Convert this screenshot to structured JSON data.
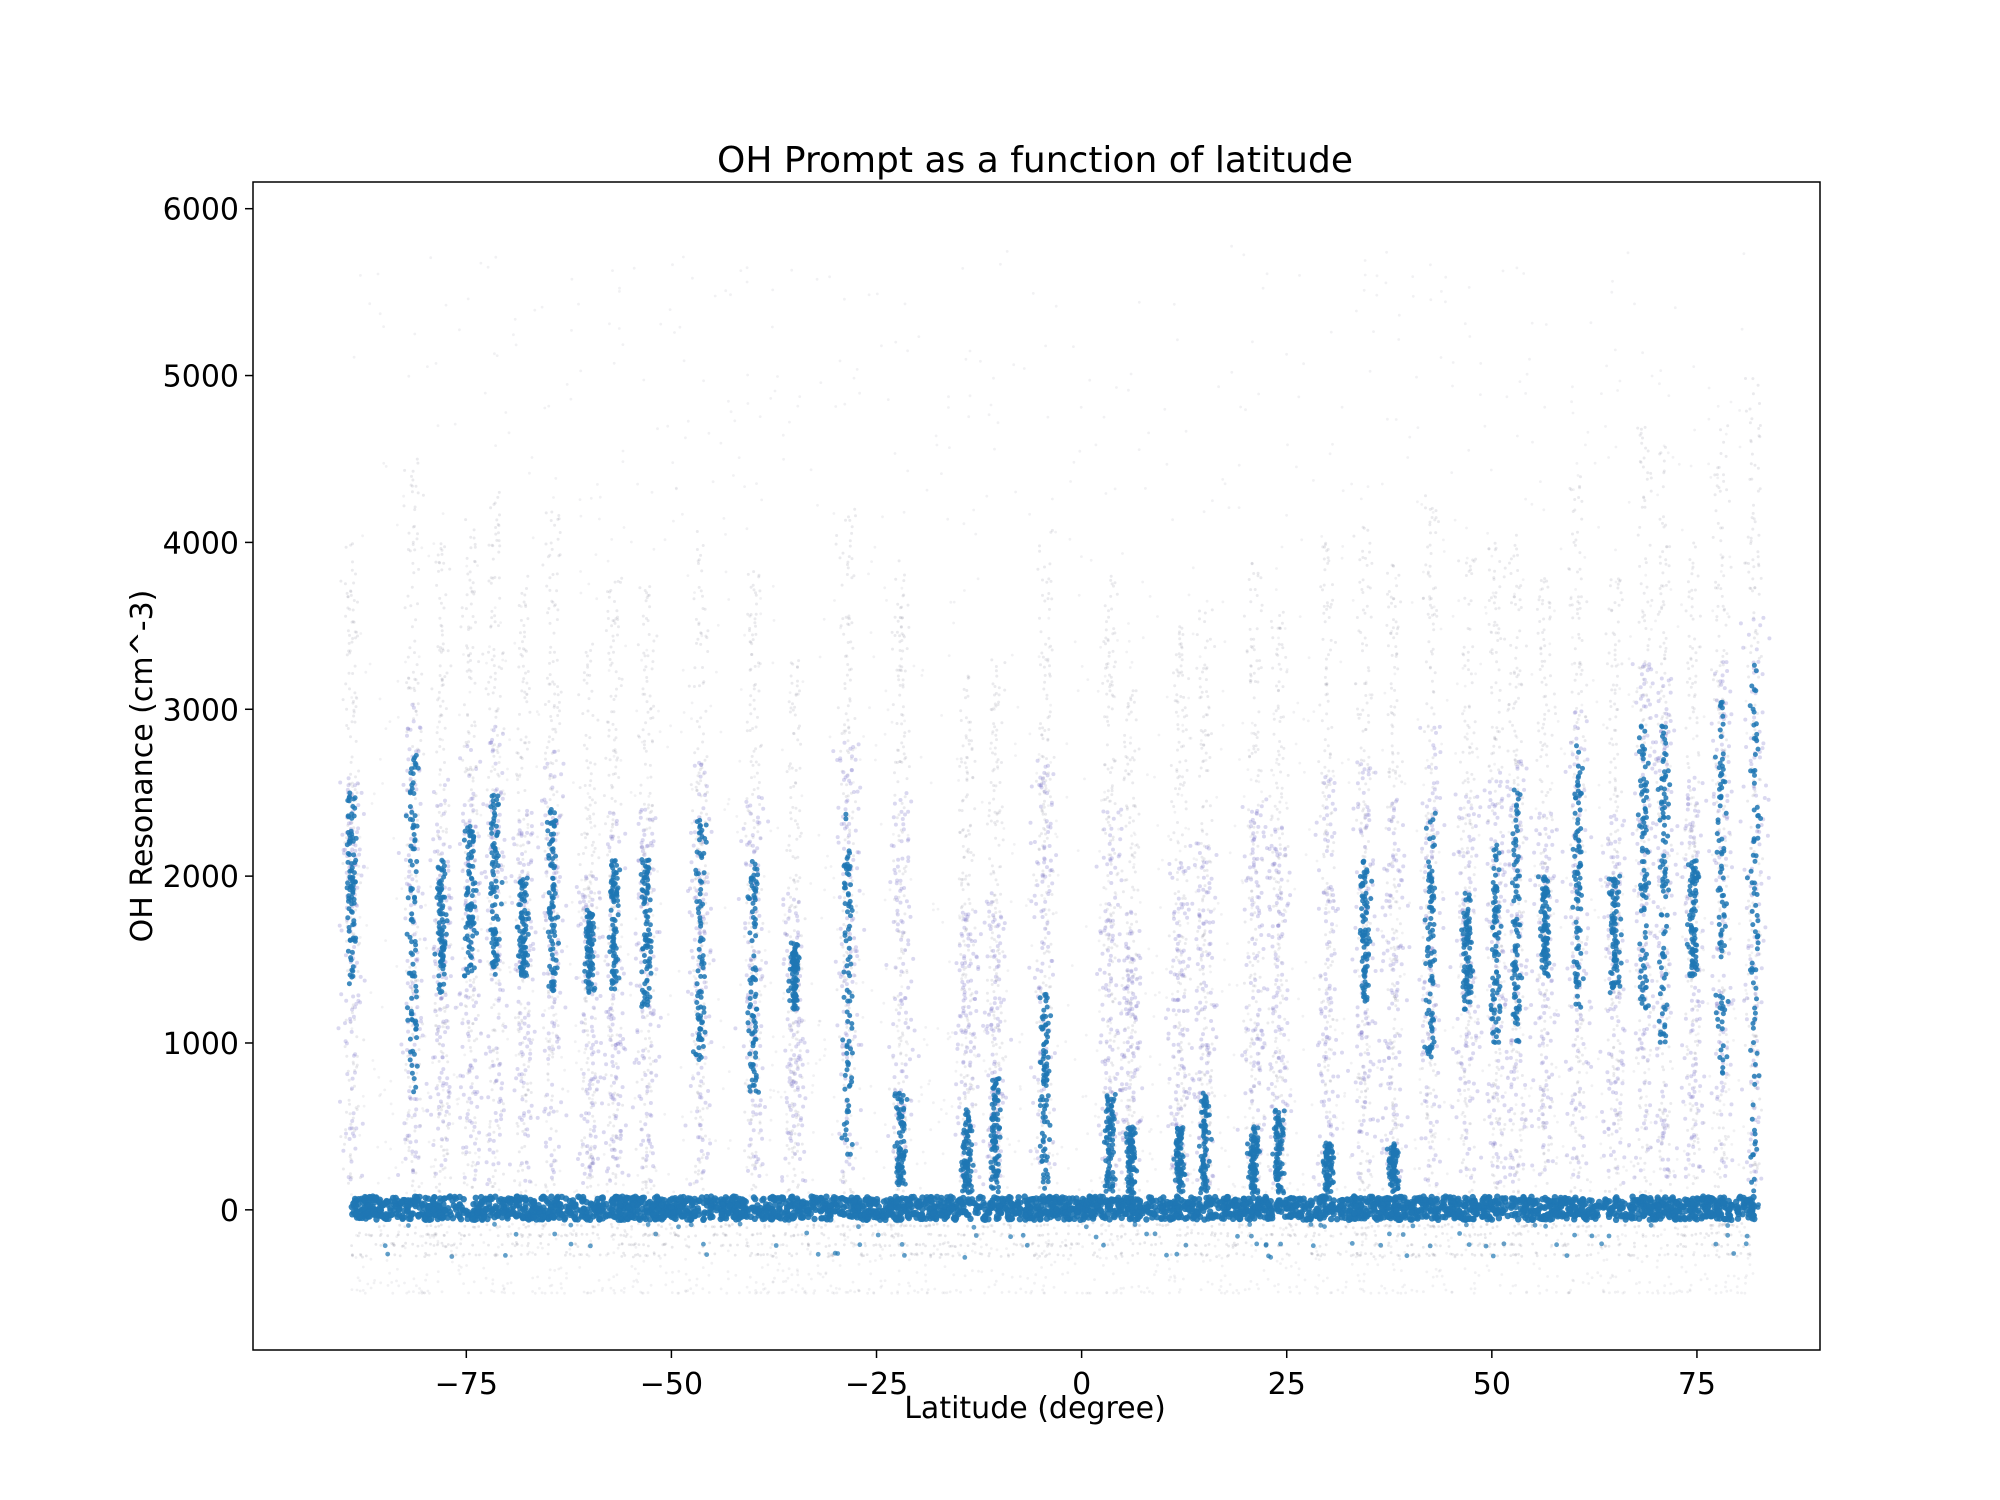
{
  "chart_data": {
    "type": "scatter",
    "title": "OH Prompt as a function of latitude",
    "xlabel": "Latitude (degree)",
    "ylabel": "OH Resonance (cm^-3)",
    "xlim": [
      -101,
      90
    ],
    "ylim": [
      -840,
      6160
    ],
    "xticks": [
      -75,
      -50,
      -25,
      0,
      25,
      50,
      75
    ],
    "xtick_labels": [
      "−75",
      "−50",
      "−25",
      "0",
      "25",
      "50",
      "75"
    ],
    "yticks": [
      0,
      1000,
      2000,
      3000,
      4000,
      5000,
      6000
    ],
    "ytick_labels": [
      "0",
      "1000",
      "2000",
      "3000",
      "4000",
      "5000",
      "6000"
    ],
    "grid": false,
    "legend": "none",
    "colors": {
      "point": "#1f77b4",
      "faint": "#8a8a9a",
      "halo": "#7b72c8"
    },
    "x_range": [
      -89,
      82
    ],
    "baseline": {
      "mean": 0,
      "spread": [
        -60,
        80
      ]
    },
    "negative_bands": [
      -270,
      -210,
      -150,
      -95
    ],
    "tracks": [
      {
        "x": -89.0,
        "peak": 2600,
        "core": [
          1350,
          2500
        ]
      },
      {
        "x": -81.5,
        "peak": 3100,
        "core": [
          700,
          2750
        ]
      },
      {
        "x": -78.0,
        "peak": 2600,
        "core": [
          1300,
          2100
        ]
      },
      {
        "x": -74.5,
        "peak": 2800,
        "core": [
          1400,
          2300
        ]
      },
      {
        "x": -71.5,
        "peak": 2900,
        "core": [
          1400,
          2500
        ]
      },
      {
        "x": -68.0,
        "peak": 2400,
        "core": [
          1400,
          2000
        ]
      },
      {
        "x": -64.5,
        "peak": 2800,
        "core": [
          1300,
          2400
        ]
      },
      {
        "x": -60.0,
        "peak": 2000,
        "core": [
          1300,
          1800
        ]
      },
      {
        "x": -57.0,
        "peak": 2400,
        "core": [
          1300,
          2100
        ]
      },
      {
        "x": -53.0,
        "peak": 2400,
        "core": [
          1200,
          2100
        ]
      },
      {
        "x": -46.5,
        "peak": 2700,
        "core": [
          900,
          2350
        ]
      },
      {
        "x": -40.0,
        "peak": 2500,
        "core": [
          700,
          2100
        ]
      },
      {
        "x": -35.0,
        "peak": 1900,
        "core": [
          1200,
          1600
        ]
      },
      {
        "x": -28.5,
        "peak": 2800,
        "core": [
          300,
          2400
        ]
      },
      {
        "x": -22.0,
        "peak": 2500,
        "core": [
          150,
          700
        ]
      },
      {
        "x": -14.0,
        "peak": 1800,
        "core": [
          100,
          600
        ]
      },
      {
        "x": -10.5,
        "peak": 1900,
        "core": [
          100,
          800
        ]
      },
      {
        "x": -4.5,
        "peak": 2700,
        "core": [
          100,
          1300
        ]
      },
      {
        "x": 3.5,
        "peak": 2400,
        "core": [
          100,
          700
        ]
      },
      {
        "x": 6.0,
        "peak": 1800,
        "core": [
          100,
          500
        ]
      },
      {
        "x": 12.0,
        "peak": 2100,
        "core": [
          100,
          500
        ]
      },
      {
        "x": 15.0,
        "peak": 2200,
        "core": [
          100,
          700
        ]
      },
      {
        "x": 21.0,
        "peak": 2500,
        "core": [
          100,
          500
        ]
      },
      {
        "x": 24.0,
        "peak": 2300,
        "core": [
          100,
          600
        ]
      },
      {
        "x": 30.0,
        "peak": 2600,
        "core": [
          100,
          400
        ]
      },
      {
        "x": 34.5,
        "peak": 2700,
        "core": [
          1200,
          2100
        ]
      },
      {
        "x": 38.0,
        "peak": 2500,
        "core": [
          100,
          400
        ]
      },
      {
        "x": 42.5,
        "peak": 2900,
        "core": [
          900,
          2400
        ]
      },
      {
        "x": 47.0,
        "peak": 2500,
        "core": [
          1200,
          1900
        ]
      },
      {
        "x": 50.5,
        "peak": 2600,
        "core": [
          1000,
          2200
        ]
      },
      {
        "x": 53.0,
        "peak": 2700,
        "core": [
          1000,
          2600
        ]
      },
      {
        "x": 56.5,
        "peak": 2400,
        "core": [
          1400,
          2000
        ]
      },
      {
        "x": 60.5,
        "peak": 3000,
        "core": [
          1200,
          2800
        ]
      },
      {
        "x": 65.0,
        "peak": 2400,
        "core": [
          1300,
          2000
        ]
      },
      {
        "x": 68.5,
        "peak": 3300,
        "core": [
          1200,
          2900
        ]
      },
      {
        "x": 71.0,
        "peak": 3200,
        "core": [
          1000,
          2900
        ]
      },
      {
        "x": 74.5,
        "peak": 2600,
        "core": [
          1400,
          2100
        ]
      },
      {
        "x": 78.0,
        "peak": 3300,
        "core": [
          800,
          3100
        ]
      },
      {
        "x": 82.0,
        "peak": 3600,
        "core": [
          0,
          3300
        ]
      }
    ]
  }
}
